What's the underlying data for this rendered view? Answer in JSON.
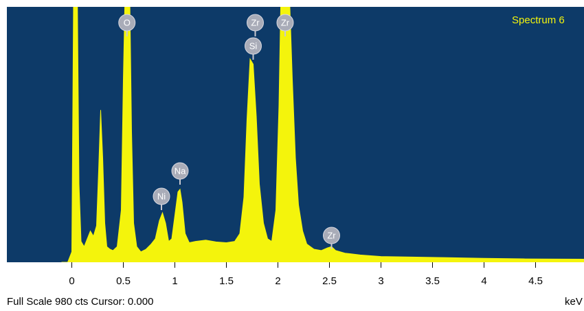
{
  "chart_data": {
    "type": "area",
    "title": "Spectrum 6",
    "footer": "Full Scale 980 cts Cursor: 0.000",
    "x_label": "keV",
    "color": "#f4f40c",
    "background": "#0d3a68",
    "xlim": [
      -0.63,
      4.97
    ],
    "ylim": [
      0,
      980
    ],
    "xticks": [
      0,
      0.5,
      1,
      1.5,
      2,
      2.5,
      3,
      3.5,
      4,
      4.5,
      5
    ],
    "x": [
      -0.1,
      -0.04,
      0.0,
      0.01,
      0.02,
      0.05,
      0.07,
      0.09,
      0.12,
      0.15,
      0.18,
      0.21,
      0.24,
      0.26,
      0.28,
      0.3,
      0.32,
      0.34,
      0.37,
      0.4,
      0.44,
      0.48,
      0.5,
      0.52,
      0.56,
      0.58,
      0.6,
      0.63,
      0.67,
      0.72,
      0.77,
      0.81,
      0.85,
      0.88,
      0.91,
      0.94,
      0.97,
      1.0,
      1.03,
      1.05,
      1.07,
      1.1,
      1.14,
      1.2,
      1.3,
      1.4,
      1.5,
      1.58,
      1.63,
      1.67,
      1.7,
      1.73,
      1.76,
      1.79,
      1.82,
      1.86,
      1.9,
      1.94,
      1.98,
      2.01,
      2.03,
      2.11,
      2.14,
      2.17,
      2.2,
      2.24,
      2.28,
      2.35,
      2.42,
      2.48,
      2.52,
      2.56,
      2.65,
      2.8,
      3.0,
      3.3,
      3.6,
      4.0,
      4.4,
      4.97
    ],
    "values": [
      0,
      0,
      40,
      600,
      1200,
      1200,
      300,
      80,
      60,
      90,
      120,
      100,
      140,
      350,
      584,
      400,
      150,
      60,
      50,
      45,
      60,
      200,
      700,
      1100,
      1100,
      500,
      150,
      60,
      40,
      50,
      70,
      90,
      160,
      190,
      150,
      80,
      90,
      180,
      270,
      280,
      230,
      110,
      75,
      80,
      85,
      78,
      75,
      80,
      110,
      250,
      550,
      780,
      760,
      560,
      300,
      150,
      90,
      80,
      200,
      600,
      1050,
      1050,
      700,
      400,
      220,
      120,
      70,
      50,
      45,
      55,
      60,
      45,
      35,
      28,
      22,
      20,
      18,
      15,
      13,
      12
    ],
    "annotations": [
      {
        "text": "O",
        "x": 0.535
      },
      {
        "text": "Zr",
        "x": 1.78
      },
      {
        "text": "Zr",
        "x": 2.07
      },
      {
        "text": "Si",
        "x": 1.76
      },
      {
        "text": "Na",
        "x": 1.05
      },
      {
        "text": "Ni",
        "x": 0.87
      },
      {
        "text": "Zr",
        "x": 2.52
      }
    ]
  }
}
